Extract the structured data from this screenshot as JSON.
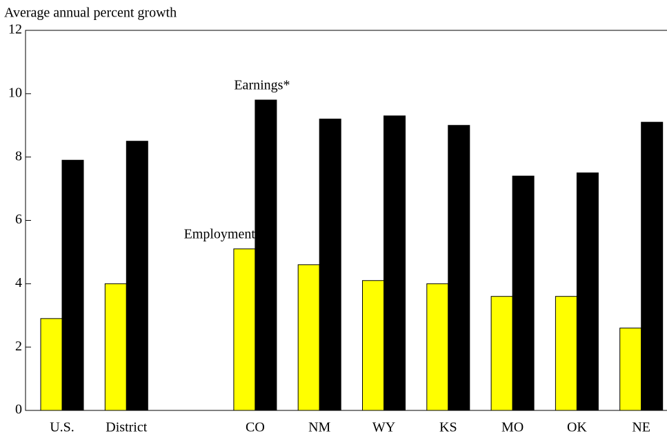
{
  "chart_data": {
    "type": "bar",
    "y_axis_label": "Average annual percent growth",
    "categories": [
      "U.S.",
      "District",
      null,
      "CO",
      "NM",
      "WY",
      "KS",
      "MO",
      "OK",
      "NE"
    ],
    "series": [
      {
        "name": "Employment",
        "color": "#ffff00",
        "values": [
          2.9,
          4.0,
          null,
          5.1,
          4.6,
          4.1,
          4.0,
          3.6,
          3.6,
          2.6
        ]
      },
      {
        "name": "Earnings*",
        "color": "#000000",
        "values": [
          7.9,
          8.5,
          null,
          9.8,
          9.2,
          9.3,
          9.0,
          7.4,
          7.5,
          9.1
        ]
      }
    ],
    "ylim": [
      0,
      12
    ],
    "yticks": [
      0,
      2,
      4,
      6,
      8,
      10,
      12
    ]
  }
}
